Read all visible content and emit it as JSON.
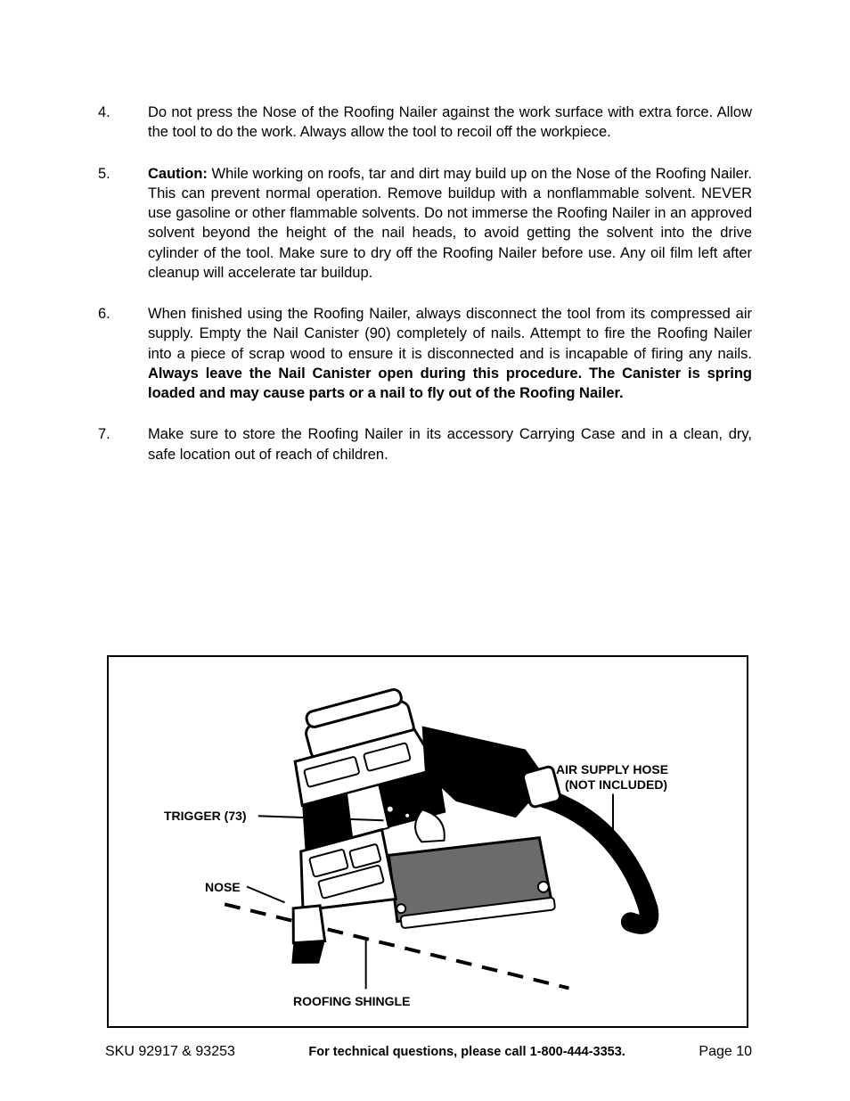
{
  "items": [
    {
      "num": "4.",
      "html": "Do not press the Nose of the Roofing Nailer against the work surface with extra force.  Allow the tool to do the work.  Always allow the tool to recoil off the workpiece."
    },
    {
      "num": "5.",
      "html": "<span class=\"bold\">Caution:</span>  While working on roofs, tar and dirt may build up on the Nose of the Roofing Nailer.  This can prevent normal operation.  Remove buildup with a nonflammable solvent.  NEVER use gasoline or other flammable solvents.  Do not immerse the Roofing Nailer in an approved solvent beyond the height of the nail heads, to avoid getting the solvent into the drive cylinder of the tool.  Make sure to dry off the Roofing Nailer before use.  Any oil film left after cleanup will accelerate tar buildup."
    },
    {
      "num": "6.",
      "html": "When finished using the Roofing Nailer, always disconnect the tool from its compressed air supply.  Empty the Nail Canister (90) completely of nails.  Attempt to fire the Roofing Nailer into a piece of scrap wood to ensure it is disconnected and is incapable of firing any nails.  <span class=\"bold\">Always leave the Nail Canister open during this procedure.  The Canister is spring loaded and may cause parts or a nail to fly out of the Roofing Nailer.</span>"
    },
    {
      "num": "7.",
      "html": "Make sure to store the Roofing Nailer in its accessory Carrying Case and in a clean, dry, safe location out of reach of children."
    }
  ],
  "figure": {
    "labels": {
      "trigger": "TRIGGER (73)",
      "nose": "NOSE",
      "airhose_l1": "AIR SUPPLY HOSE",
      "airhose_l2": "(NOT INCLUDED)",
      "shingle": "ROOFING SHINGLE"
    },
    "colors": {
      "stroke": "#000000",
      "fill_black": "#000000",
      "fill_white": "#ffffff",
      "fill_grey": "#6b6b6b"
    }
  },
  "footer": {
    "left": "SKU 92917 & 93253",
    "mid": "For technical questions, please call 1-800-444-3353.",
    "right": "Page 10"
  }
}
